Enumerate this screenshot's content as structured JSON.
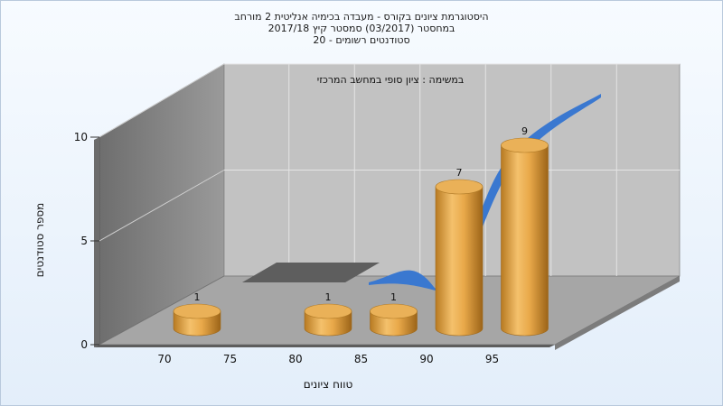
{
  "chart_data": {
    "type": "bar",
    "title_lines": [
      "היסטוגרמת ציונים בקורס - מעבדה בכימיה אנליטית 2 מורחב",
      "במחסטר  (03/2017)  סמסטר קיץ  2017/18",
      "סטודנטים רשומים - 20"
    ],
    "subtitle": "במשימה : ציון סופי במחשב המרכזי",
    "xlabel": "טווח ציונים",
    "ylabel": "מספר סטודנטים",
    "x_ticks": [
      70,
      75,
      80,
      85,
      90,
      95
    ],
    "y_ticks": [
      0,
      5,
      10
    ],
    "ylim": [
      0,
      10
    ],
    "categories": [
      70,
      75,
      80,
      85,
      90,
      95
    ],
    "values": [
      1,
      0,
      1,
      1,
      7,
      9
    ],
    "bar_color": "#e8a84a",
    "curve_color": "#3a78d0",
    "wall_color_back": "#bdbdbd",
    "wall_color_side": "#8a8a8a",
    "floor_color": "#a9a9a9"
  }
}
